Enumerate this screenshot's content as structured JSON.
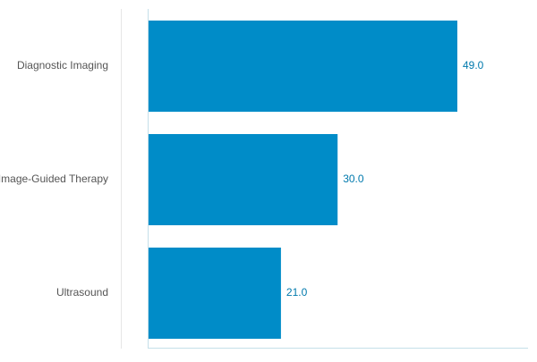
{
  "chart_data": {
    "type": "bar",
    "orientation": "horizontal",
    "title": "",
    "xlabel": "",
    "ylabel": "",
    "categories": [
      "Diagnostic Imaging",
      "Image-Guided Therapy",
      "Ultrasound"
    ],
    "values": [
      49.0,
      30.0,
      21.0
    ],
    "value_labels": [
      "49.0",
      "30.0",
      "21.0"
    ],
    "xlim": [
      0,
      60
    ],
    "grid": false,
    "legend": "none",
    "bar_color": "#008cc8",
    "label_color": "#0079ad",
    "axis_color": "#c5dfe9"
  }
}
